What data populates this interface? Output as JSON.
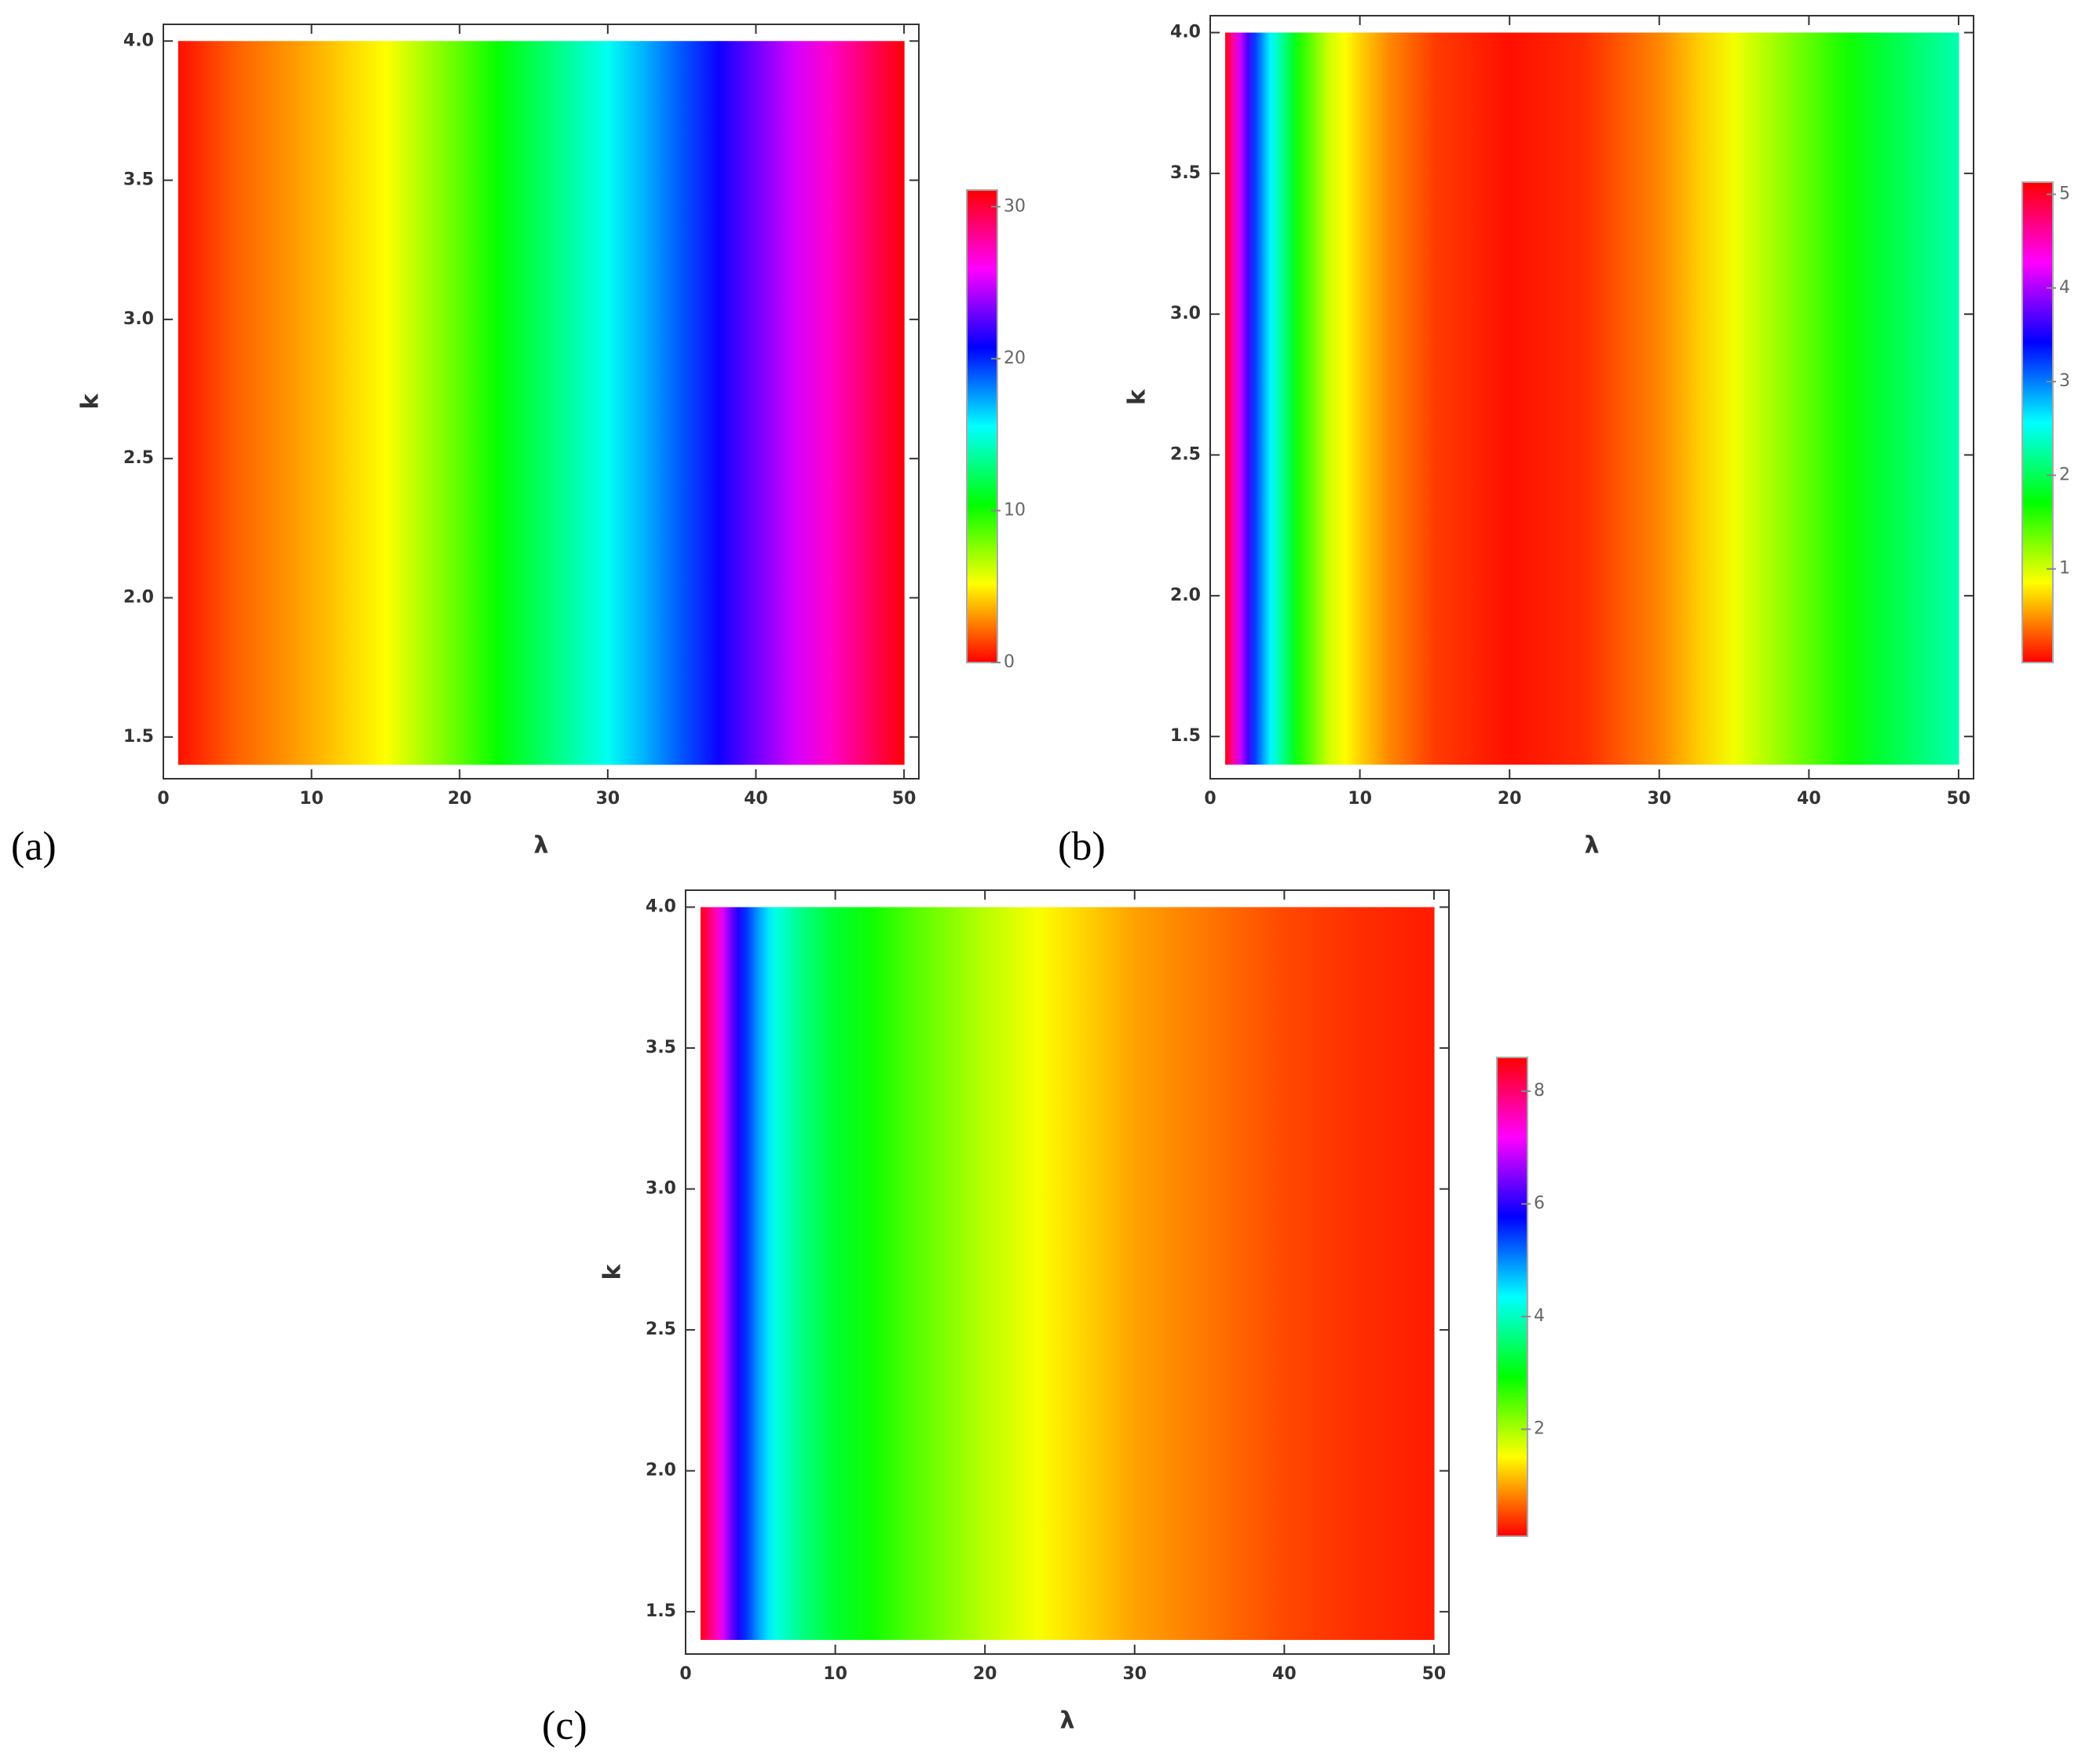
{
  "chart_data": [
    {
      "type": "heatmap",
      "panel_label": "(a)",
      "xlabel": "λ",
      "ylabel": "k",
      "colormap": "hue",
      "x": [
        1,
        5,
        10,
        15,
        20,
        25,
        30,
        35,
        40,
        45,
        50
      ],
      "y": [
        1.4,
        4.0
      ],
      "values": [
        0.3,
        2,
        3.5,
        5.2,
        8.5,
        12,
        15.3,
        19,
        23,
        27,
        31
      ],
      "xlim": [
        0,
        51
      ],
      "ylim": [
        1.35,
        4.06
      ],
      "xticks": [
        0,
        10,
        20,
        30,
        40,
        50
      ],
      "yticks": [
        1.5,
        {
          "value": 2,
          "label": "2.0"
        },
        2.5,
        {
          "value": 3,
          "label": "3.0"
        },
        3.5,
        {
          "value": 4,
          "label": "4.0"
        }
      ],
      "clim": [
        0,
        31.1
      ],
      "cticks": [
        0,
        10,
        20,
        30
      ]
    },
    {
      "type": "heatmap",
      "panel_label": "(b)",
      "xlabel": "λ",
      "ylabel": "k",
      "colormap": "hue",
      "x": [
        1,
        2,
        3,
        4,
        5,
        6,
        8,
        10,
        12,
        15,
        20,
        25,
        30,
        35,
        40,
        45,
        50
      ],
      "y": [
        1.4,
        4.0
      ],
      "values": [
        5.1,
        4.1,
        3.2,
        2.6,
        2.1,
        1.6,
        1.0,
        0.7,
        0.45,
        0.2,
        0.05,
        0.15,
        0.45,
        0.9,
        1.4,
        1.9,
        2.3
      ],
      "xlim": [
        0,
        51
      ],
      "ylim": [
        1.35,
        4.06
      ],
      "xticks": [
        0,
        10,
        20,
        30,
        40,
        50
      ],
      "yticks": [
        1.5,
        {
          "value": 2,
          "label": "2.0"
        },
        2.5,
        {
          "value": 3,
          "label": "3.0"
        },
        3.5,
        {
          "value": 4,
          "label": "4.0"
        }
      ],
      "clim": [
        0,
        5.13
      ],
      "cticks": [
        1,
        2,
        3,
        4,
        5
      ]
    },
    {
      "type": "heatmap",
      "panel_label": "(c)",
      "xlabel": "λ",
      "ylabel": "k",
      "colormap": "hue",
      "x": [
        1,
        2,
        3,
        4,
        5,
        6,
        8,
        10,
        15,
        20,
        22,
        25,
        30,
        35,
        40,
        45,
        50
      ],
      "y": [
        1.4,
        4.0
      ],
      "values": [
        8.5,
        7.6,
        6.4,
        5.5,
        4.8,
        4.2,
        3.6,
        3.2,
        2.5,
        1.9,
        1.7,
        1.4,
        1.0,
        0.75,
        0.5,
        0.35,
        0.25
      ],
      "xlim": [
        0,
        51
      ],
      "ylim": [
        1.35,
        4.06
      ],
      "xticks": [
        0,
        10,
        20,
        30,
        40,
        50
      ],
      "yticks": [
        1.5,
        {
          "value": 2,
          "label": "2.0"
        },
        2.5,
        {
          "value": 3,
          "label": "3.0"
        },
        3.5,
        {
          "value": 4,
          "label": "4.0"
        }
      ],
      "clim": [
        0.1,
        8.6
      ],
      "cticks": [
        2,
        4,
        6,
        8
      ]
    }
  ]
}
